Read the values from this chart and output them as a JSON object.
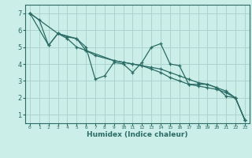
{
  "xlabel": "Humidex (Indice chaleur)",
  "background_color": "#cceee8",
  "grid_color": "#aad4ce",
  "line_color": "#2a6b65",
  "xlim": [
    -0.5,
    23.5
  ],
  "ylim": [
    0.5,
    7.5
  ],
  "yticks": [
    1,
    2,
    3,
    4,
    5,
    6,
    7
  ],
  "xticks": [
    0,
    1,
    2,
    3,
    4,
    5,
    6,
    7,
    8,
    9,
    10,
    11,
    12,
    13,
    14,
    15,
    16,
    17,
    18,
    19,
    20,
    21,
    22,
    23
  ],
  "series": [
    {
      "x": [
        0,
        1,
        2,
        3,
        4,
        5,
        6,
        7,
        8,
        9,
        10,
        11,
        12,
        13,
        14,
        15,
        16,
        17,
        18,
        19,
        20,
        21,
        22,
        23
      ],
      "y": [
        7.0,
        6.6,
        5.1,
        5.8,
        5.6,
        5.5,
        5.0,
        3.1,
        3.3,
        4.1,
        4.0,
        3.5,
        4.1,
        5.0,
        5.2,
        4.0,
        3.9,
        2.8,
        2.8,
        2.8,
        2.6,
        2.1,
        2.0,
        0.7
      ]
    },
    {
      "x": [
        0,
        3,
        5,
        6,
        9,
        10,
        11,
        12,
        13,
        14,
        15,
        16,
        17,
        18,
        19,
        20,
        21,
        22,
        23
      ],
      "y": [
        7.0,
        5.8,
        5.5,
        4.8,
        4.2,
        4.1,
        4.0,
        3.9,
        3.8,
        3.7,
        3.5,
        3.3,
        3.1,
        2.9,
        2.8,
        2.6,
        2.4,
        2.0,
        0.7
      ]
    },
    {
      "x": [
        0,
        2,
        3,
        4,
        5,
        6,
        7,
        9,
        10,
        11,
        12,
        13,
        14,
        15,
        16,
        17,
        18,
        19,
        20,
        21,
        22,
        23
      ],
      "y": [
        7.0,
        5.1,
        5.8,
        5.5,
        5.0,
        4.8,
        4.5,
        4.2,
        4.1,
        4.0,
        3.9,
        3.7,
        3.5,
        3.2,
        3.0,
        2.8,
        2.7,
        2.6,
        2.5,
        2.3,
        2.0,
        0.7
      ]
    }
  ]
}
